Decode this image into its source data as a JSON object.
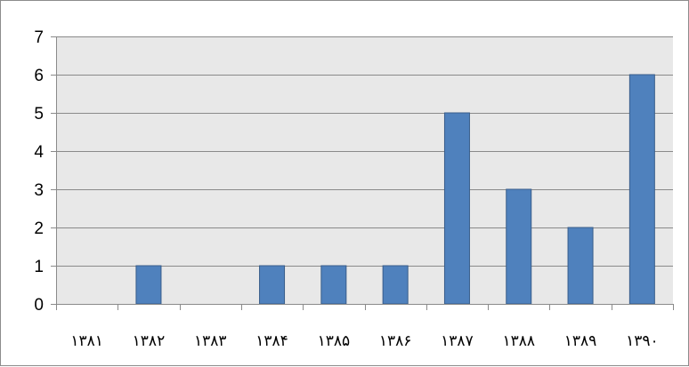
{
  "chart_data": {
    "type": "bar",
    "title": "",
    "xlabel": "",
    "ylabel": "",
    "categories": [
      "۱۳۸۱",
      "۱۳۸۲",
      "۱۳۸۳",
      "۱۳۸۴",
      "۱۳۸۵",
      "۱۳۸۶",
      "۱۳۸۷",
      "۱۳۸۸",
      "۱۳۸۹",
      "۱۳۹۰"
    ],
    "values": [
      0,
      1,
      0,
      1,
      1,
      1,
      5,
      3,
      2,
      6
    ],
    "ylim": [
      0,
      7
    ],
    "yticks": [
      0,
      1,
      2,
      3,
      4,
      5,
      6,
      7
    ],
    "grid": true,
    "legend": "none",
    "colors": {
      "bar": "#4f81bd",
      "bar_border": "#385d8a",
      "plot_background": "#e8e8e8",
      "grid": "#8a8a8a",
      "axis": "#8a8a8a"
    }
  }
}
